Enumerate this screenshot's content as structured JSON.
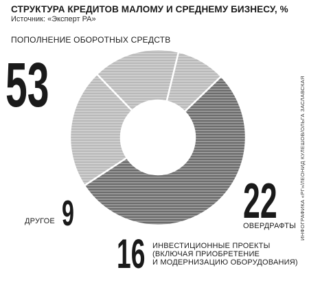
{
  "title": "СТРУКТУРА КРЕДИТОВ МАЛОМУ И СРЕДНЕМУ БИЗНЕСУ, %",
  "source": "Источник: «Эксперт РА»",
  "credit": "ИНФОГРАФИКА «РГ»/ЛЕОНИД КУЛЕШОВ/ОЛЬГА ЗАСЛАВСКАЯ",
  "colors": {
    "dark": "#6b6b6b",
    "light": "#b9b9b9",
    "stripe": "#ffffff",
    "text": "#1a1a1a"
  },
  "chart_data": {
    "type": "pie",
    "title": "СТРУКТУРА КРЕДИТОВ МАЛОМУ И СРЕДНЕМУ БИЗНЕСУ, %",
    "subtitle": "Источник: «Эксперт РА»",
    "donut": true,
    "slices": [
      {
        "label": "ПОПОЛНЕНИЕ ОБОРОТНЫХ СРЕДСТВ",
        "value": 53,
        "value_text": "53",
        "shade": "dark"
      },
      {
        "label": "ОВЕРДРАФТЫ",
        "value": 22,
        "value_text": "22",
        "shade": "light"
      },
      {
        "label_lines": [
          "ИНВЕСТИЦИОННЫЕ ПРОЕКТЫ",
          "(ВКЛЮЧАЯ ПРИОБРЕТЕНИЕ",
          "И МОДЕРНИЗАЦИЮ ОБОРУДОВАНИЯ)"
        ],
        "value": 16,
        "value_text": "16",
        "shade": "light"
      },
      {
        "label": "ДРУГОЕ",
        "value": 9,
        "value_text": "9",
        "shade": "light"
      }
    ]
  }
}
